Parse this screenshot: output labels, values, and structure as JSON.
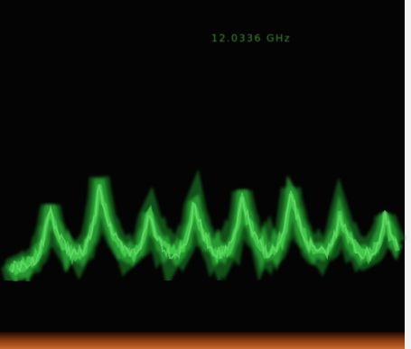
{
  "display": {
    "readout": "12.0336 GHz"
  }
}
